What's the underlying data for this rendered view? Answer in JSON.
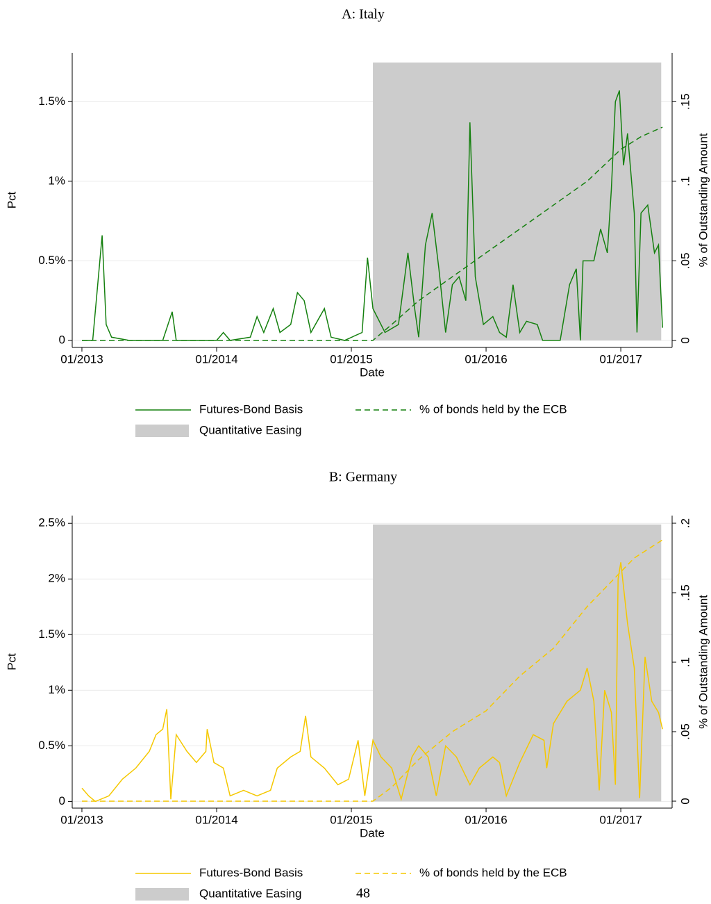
{
  "chart_data": [
    {
      "type": "line",
      "title": "A: Italy",
      "xlabel": "Date",
      "ylabel": "Pct",
      "y2label": "% of Outstanding Amount",
      "xlim": [
        2012.928,
        2017.381
      ],
      "xticks": [
        {
          "value": 2013,
          "label": "01/2013"
        },
        {
          "value": 2014,
          "label": "01/2014"
        },
        {
          "value": 2015,
          "label": "01/2015"
        },
        {
          "value": 2016,
          "label": "01/2016"
        },
        {
          "value": 2017,
          "label": "01/2017"
        }
      ],
      "ylim": [
        -0.044,
        1.807
      ],
      "yticks": [
        0,
        {
          "value": 0.5,
          "label": "0.5%"
        },
        {
          "value": 1,
          "label": "1%"
        },
        {
          "value": 1.5,
          "label": "1.5%"
        }
      ],
      "y2lim": [
        -0.0044,
        0.1807
      ],
      "y2ticks": [
        0,
        {
          "value": 0.05,
          "label": ".05"
        },
        {
          "value": 0.1,
          "label": ".1"
        },
        {
          "value": 0.15,
          "label": ".15"
        }
      ],
      "grid": true,
      "shade": {
        "name": "Quantitative Easing",
        "color": "#cccccc",
        "x": [
          2015.16,
          2017.3
        ],
        "values": [
          1.746
        ]
      },
      "series": [
        {
          "name": "Futures-Bond Basis",
          "color": "#15800f",
          "x": [
            2013.0,
            2013.08,
            2013.15,
            2013.18,
            2013.22,
            2013.35,
            2013.6,
            2013.67,
            2013.7,
            2014.0,
            2014.05,
            2014.1,
            2014.25,
            2014.3,
            2014.35,
            2014.42,
            2014.47,
            2014.55,
            2014.6,
            2014.65,
            2014.7,
            2014.8,
            2014.85,
            2014.95,
            2015.08,
            2015.12,
            2015.16,
            2015.25,
            2015.35,
            2015.42,
            2015.47,
            2015.5,
            2015.55,
            2015.6,
            2015.65,
            2015.7,
            2015.75,
            2015.8,
            2015.85,
            2015.88,
            2015.92,
            2015.98,
            2016.05,
            2016.1,
            2016.15,
            2016.2,
            2016.25,
            2016.3,
            2016.38,
            2016.42,
            2016.55,
            2016.62,
            2016.67,
            2016.7,
            2016.72,
            2016.8,
            2016.85,
            2016.9,
            2016.93,
            2016.96,
            2016.99,
            2017.02,
            2017.05,
            2017.1,
            2017.12,
            2017.15,
            2017.2,
            2017.25,
            2017.28,
            2017.31
          ],
          "values": [
            0,
            0,
            0.66,
            0.1,
            0.02,
            0,
            0,
            0.18,
            0,
            0,
            0.05,
            0,
            0.02,
            0.15,
            0.05,
            0.2,
            0.05,
            0.1,
            0.3,
            0.25,
            0.05,
            0.2,
            0.02,
            0,
            0.05,
            0.52,
            0.2,
            0.05,
            0.1,
            0.55,
            0.2,
            0.02,
            0.6,
            0.8,
            0.45,
            0.05,
            0.35,
            0.4,
            0.25,
            1.37,
            0.4,
            0.1,
            0.15,
            0.05,
            0.02,
            0.35,
            0.05,
            0.12,
            0.1,
            0,
            0,
            0.35,
            0.45,
            0,
            0.5,
            0.5,
            0.7,
            0.55,
            0.95,
            1.5,
            1.57,
            1.1,
            1.3,
            0.8,
            0.05,
            0.8,
            0.85,
            0.55,
            0.6,
            0.08
          ]
        },
        {
          "name": "% of bonds held by the ECB",
          "color": "#15800f",
          "dash": true,
          "axis": "y2",
          "x": [
            2013.0,
            2015.16,
            2015.3,
            2015.5,
            2015.75,
            2016.0,
            2016.25,
            2016.5,
            2016.75,
            2017.0,
            2017.15,
            2017.31
          ],
          "values": [
            0,
            0,
            0.01,
            0.025,
            0.04,
            0.055,
            0.07,
            0.085,
            0.1,
            0.12,
            0.128,
            0.134
          ]
        }
      ]
    },
    {
      "type": "line",
      "title": "B: Germany",
      "xlabel": "Date",
      "ylabel": "Pct",
      "y2label": "% of Outstanding Amount",
      "xlim": [
        2012.928,
        2017.381
      ],
      "xticks": [
        {
          "value": 2013,
          "label": "01/2013"
        },
        {
          "value": 2014,
          "label": "01/2014"
        },
        {
          "value": 2015,
          "label": "01/2015"
        },
        {
          "value": 2016,
          "label": "01/2016"
        },
        {
          "value": 2017,
          "label": "01/2017"
        }
      ],
      "ylim": [
        -0.06,
        2.57
      ],
      "yticks": [
        0,
        {
          "value": 0.5,
          "label": "0.5%"
        },
        {
          "value": 1,
          "label": "1%"
        },
        {
          "value": 1.5,
          "label": "1.5%"
        },
        {
          "value": 2,
          "label": "2%"
        },
        {
          "value": 2.5,
          "label": "2.5%"
        }
      ],
      "y2lim": [
        -0.005,
        0.2055
      ],
      "y2ticks": [
        0,
        {
          "value": 0.05,
          "label": ".05"
        },
        {
          "value": 0.1,
          "label": ".1"
        },
        {
          "value": 0.15,
          "label": ".15"
        },
        {
          "value": 0.2,
          "label": ".2"
        }
      ],
      "grid": true,
      "shade": {
        "name": "Quantitative Easing",
        "color": "#cccccc",
        "x": [
          2015.16,
          2017.3
        ],
        "values": [
          2.49
        ]
      },
      "series": [
        {
          "name": "Futures-Bond Basis",
          "color": "#f5c800",
          "x": [
            2013.0,
            2013.05,
            2013.1,
            2013.2,
            2013.3,
            2013.4,
            2013.5,
            2013.55,
            2013.6,
            2013.63,
            2013.66,
            2013.7,
            2013.78,
            2013.85,
            2013.92,
            2013.93,
            2013.98,
            2014.05,
            2014.1,
            2014.2,
            2014.3,
            2014.4,
            2014.45,
            2014.55,
            2014.62,
            2014.66,
            2014.7,
            2014.8,
            2014.9,
            2014.98,
            2015.05,
            2015.1,
            2015.16,
            2015.22,
            2015.3,
            2015.37,
            2015.45,
            2015.5,
            2015.57,
            2015.63,
            2015.7,
            2015.78,
            2015.88,
            2015.95,
            2016.05,
            2016.1,
            2016.15,
            2016.25,
            2016.35,
            2016.43,
            2016.45,
            2016.5,
            2016.6,
            2016.7,
            2016.75,
            2016.8,
            2016.84,
            2016.88,
            2016.93,
            2016.96,
            2016.98,
            2017.0,
            2017.05,
            2017.1,
            2017.14,
            2017.18,
            2017.23,
            2017.28,
            2017.31
          ],
          "values": [
            0.12,
            0.05,
            0,
            0.05,
            0.2,
            0.3,
            0.45,
            0.6,
            0.65,
            0.83,
            0.02,
            0.6,
            0.45,
            0.35,
            0.45,
            0.65,
            0.35,
            0.3,
            0.05,
            0.1,
            0.05,
            0.1,
            0.3,
            0.4,
            0.45,
            0.77,
            0.4,
            0.3,
            0.15,
            0.2,
            0.55,
            0.05,
            0.55,
            0.4,
            0.3,
            0.02,
            0.4,
            0.5,
            0.4,
            0.05,
            0.5,
            0.4,
            0.15,
            0.3,
            0.4,
            0.35,
            0.05,
            0.35,
            0.6,
            0.55,
            0.3,
            0.7,
            0.9,
            1.0,
            1.2,
            0.9,
            0.1,
            1.0,
            0.8,
            0.15,
            2.0,
            2.15,
            1.6,
            1.2,
            0.03,
            1.3,
            0.9,
            0.8,
            0.65
          ]
        },
        {
          "name": "% of bonds held by the ECB",
          "color": "#f5c800",
          "dash": true,
          "axis": "y2",
          "x": [
            2013.0,
            2015.16,
            2015.3,
            2015.5,
            2015.75,
            2016.0,
            2016.25,
            2016.5,
            2016.75,
            2016.95,
            2017.1,
            2017.31
          ],
          "values": [
            0,
            0,
            0.01,
            0.03,
            0.05,
            0.065,
            0.09,
            0.11,
            0.14,
            0.16,
            0.175,
            0.188
          ]
        }
      ]
    }
  ],
  "page_number": "48"
}
